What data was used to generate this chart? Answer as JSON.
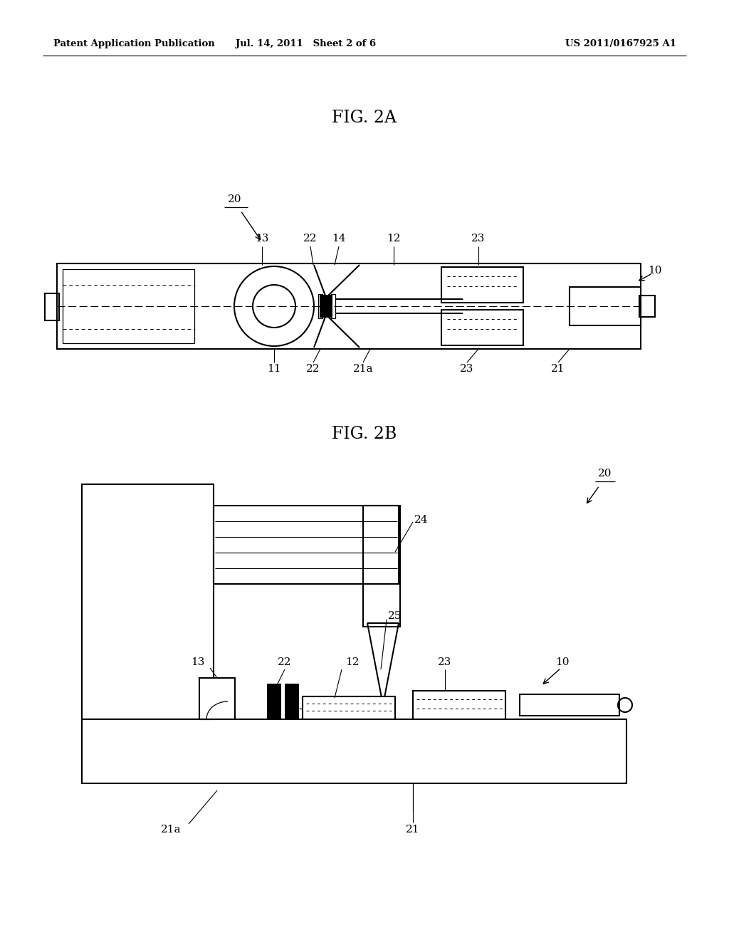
{
  "header_left": "Patent Application Publication",
  "header_mid": "Jul. 14, 2011   Sheet 2 of 6",
  "header_right": "US 2011/0167925 A1",
  "fig2a_title": "FIG. 2A",
  "fig2b_title": "FIG. 2B",
  "bg_color": "#ffffff",
  "line_color": "#000000"
}
